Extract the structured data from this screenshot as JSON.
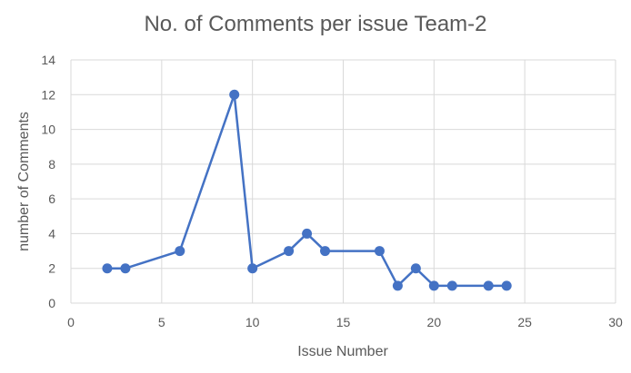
{
  "chart_data": {
    "type": "line",
    "title": "No. of Comments per issue Team-2",
    "xlabel": "Issue Number",
    "ylabel": "number of Comments",
    "xlim": [
      0,
      30
    ],
    "ylim": [
      0,
      14
    ],
    "xticks": [
      0,
      5,
      10,
      15,
      20,
      25,
      30
    ],
    "yticks": [
      0,
      2,
      4,
      6,
      8,
      10,
      12,
      14
    ],
    "grid": true,
    "legend": "none",
    "series": [
      {
        "color": "#4472c4",
        "points": [
          {
            "x": 2,
            "y": 2
          },
          {
            "x": 3,
            "y": 2
          },
          {
            "x": 6,
            "y": 3
          },
          {
            "x": 9,
            "y": 12
          },
          {
            "x": 10,
            "y": 2
          },
          {
            "x": 12,
            "y": 3
          },
          {
            "x": 13,
            "y": 4
          },
          {
            "x": 14,
            "y": 3
          },
          {
            "x": 17,
            "y": 3
          },
          {
            "x": 18,
            "y": 1
          },
          {
            "x": 19,
            "y": 2
          },
          {
            "x": 20,
            "y": 1
          },
          {
            "x": 21,
            "y": 1
          },
          {
            "x": 23,
            "y": 1
          },
          {
            "x": 24,
            "y": 1
          }
        ]
      }
    ]
  }
}
